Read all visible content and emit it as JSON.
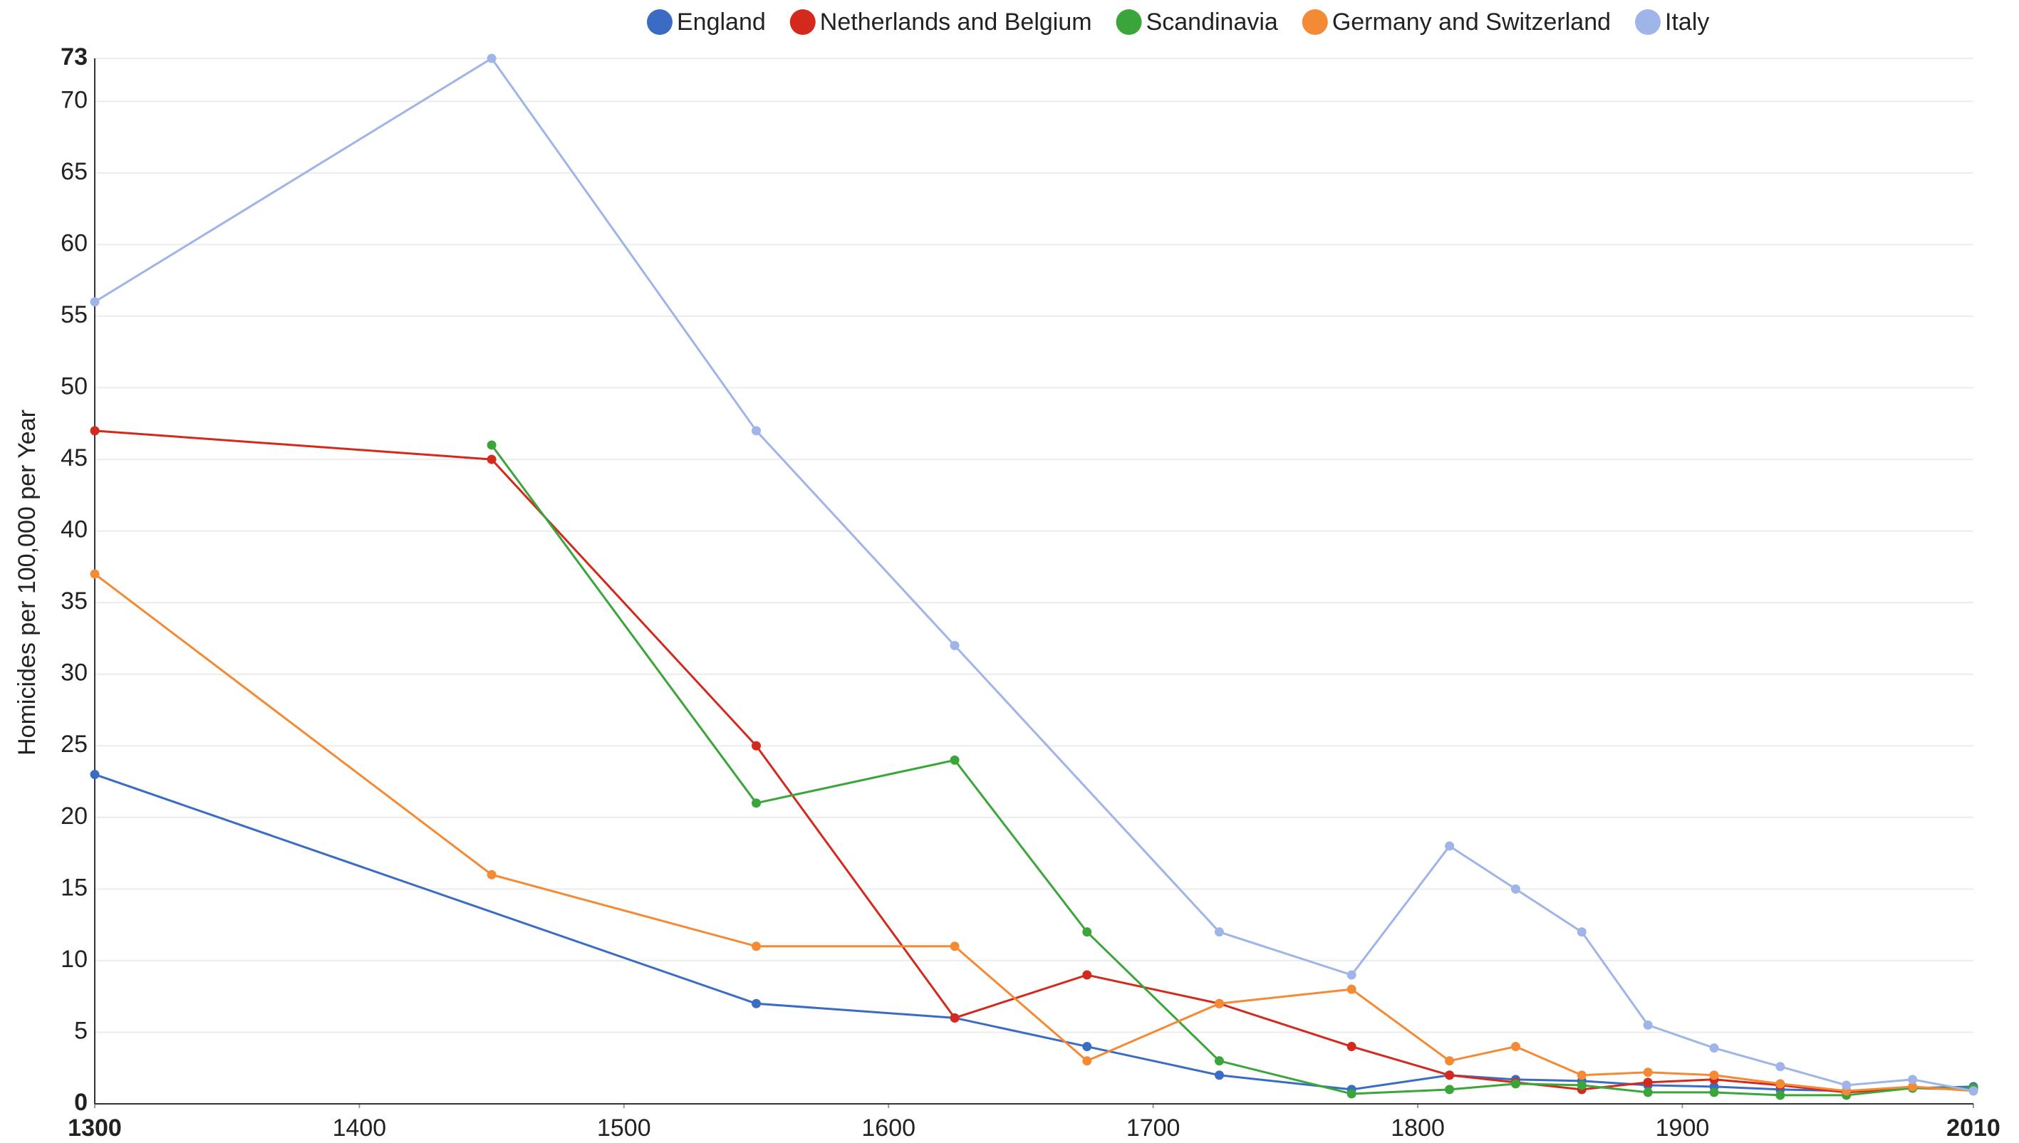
{
  "chart_data": {
    "type": "line",
    "y_label": "Homicides per 100,000 per Year",
    "xlim": [
      1300,
      2010
    ],
    "ylim": [
      0,
      73
    ],
    "xticks": [
      1300,
      1400,
      1500,
      1600,
      1700,
      1800,
      1900,
      2010
    ],
    "yticks": [
      0,
      5,
      10,
      15,
      20,
      25,
      30,
      35,
      40,
      45,
      50,
      55,
      60,
      65,
      70,
      73
    ],
    "grid": true,
    "legend": "top",
    "series": [
      {
        "name": "England",
        "color": "#3a6cc4",
        "x": [
          1300,
          1550,
          1625,
          1675,
          1725,
          1775,
          1812,
          1837,
          1862,
          1887,
          1912,
          1937,
          1962,
          1987,
          2010
        ],
        "values": [
          23,
          7,
          6,
          4,
          2,
          1,
          2,
          1.7,
          1.6,
          1.3,
          1.2,
          1,
          0.9,
          1.1,
          1.2
        ]
      },
      {
        "name": "Netherlands and Belgium",
        "color": "#d42a1e",
        "x": [
          1300,
          1450,
          1550,
          1625,
          1675,
          1725,
          1775,
          1812,
          1837,
          1862,
          1887,
          1912,
          1937,
          1962,
          1987,
          2010
        ],
        "values": [
          47,
          45,
          25,
          6,
          9,
          7,
          4,
          2,
          1.5,
          1,
          1.5,
          1.7,
          1.3,
          0.8,
          1.1,
          1
        ]
      },
      {
        "name": "Scandinavia",
        "color": "#3aa63a",
        "x": [
          1450,
          1550,
          1625,
          1675,
          1725,
          1775,
          1812,
          1837,
          1862,
          1887,
          1912,
          1937,
          1962,
          1987,
          2010
        ],
        "values": [
          46,
          21,
          24,
          12,
          3,
          0.7,
          1,
          1.4,
          1.3,
          0.8,
          0.8,
          0.6,
          0.6,
          1.1,
          1.1
        ]
      },
      {
        "name": "Germany and Switzerland",
        "color": "#f58a35",
        "x": [
          1300,
          1450,
          1550,
          1625,
          1675,
          1725,
          1775,
          1812,
          1837,
          1862,
          1887,
          1912,
          1937,
          1962,
          1987,
          2010
        ],
        "values": [
          37,
          16,
          11,
          11,
          3,
          7,
          8,
          3,
          4,
          2,
          2.2,
          2,
          1.4,
          0.9,
          1.2,
          0.9
        ]
      },
      {
        "name": "Italy",
        "color": "#9fb4e8",
        "x": [
          1300,
          1450,
          1550,
          1625,
          1725,
          1775,
          1812,
          1837,
          1862,
          1887,
          1912,
          1937,
          1962,
          1987,
          2010
        ],
        "values": [
          56,
          73,
          47,
          32,
          12,
          9,
          18,
          15,
          12,
          5.5,
          3.9,
          2.6,
          1.3,
          1.7,
          0.9
        ]
      }
    ]
  }
}
